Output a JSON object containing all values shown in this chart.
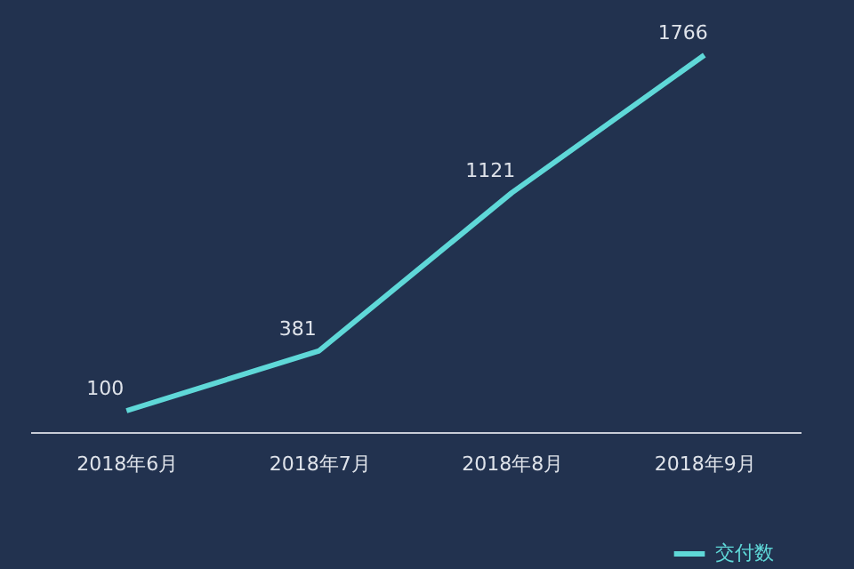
{
  "chart_data": {
    "type": "line",
    "categories": [
      "2018年6月",
      "2018年7月",
      "2018年8月",
      "2018年9月"
    ],
    "series": [
      {
        "name": "交付数",
        "color": "#5fd8d8",
        "values": [
          100,
          381,
          1121,
          1766
        ]
      }
    ],
    "data_labels": true,
    "legend": "bottom right",
    "grid": false,
    "marker": "none",
    "line_style": "solid",
    "tick_labels": "x"
  }
}
